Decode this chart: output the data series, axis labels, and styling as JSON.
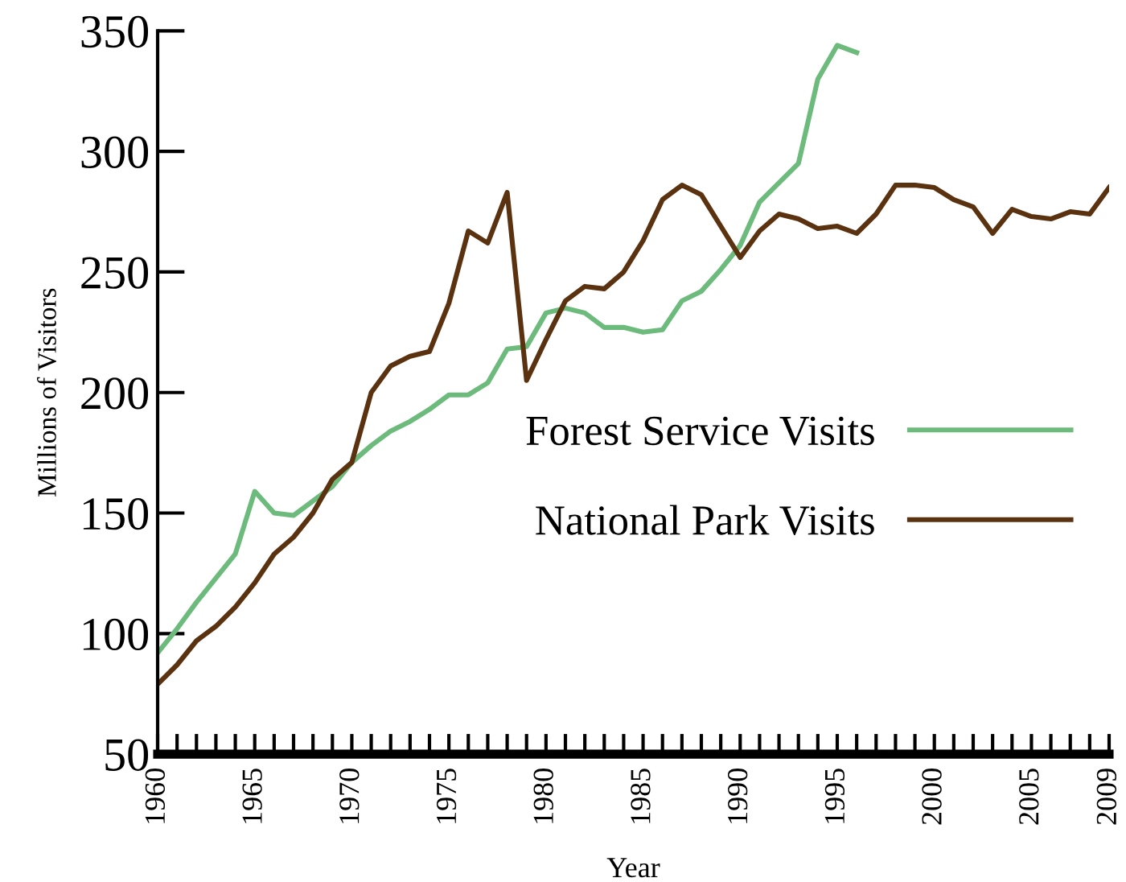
{
  "chart_data": {
    "type": "line",
    "xlabel": "Year",
    "ylabel": "Millions of Visitors",
    "x": [
      1960,
      1961,
      1962,
      1963,
      1964,
      1965,
      1966,
      1967,
      1968,
      1969,
      1970,
      1971,
      1972,
      1973,
      1974,
      1975,
      1976,
      1977,
      1978,
      1979,
      1980,
      1981,
      1982,
      1983,
      1984,
      1985,
      1986,
      1987,
      1988,
      1989,
      1990,
      1991,
      1992,
      1993,
      1994,
      1995,
      1996,
      1997,
      1998,
      1999,
      2000,
      2001,
      2002,
      2003,
      2004,
      2005,
      2006,
      2007,
      2008,
      2009
    ],
    "series": [
      {
        "name": "Forest Service Visits",
        "color": "#6dbb7c",
        "values": [
          92,
          102,
          113,
          123,
          133,
          159,
          150,
          149,
          155,
          161,
          171,
          178,
          184,
          188,
          193,
          199,
          199,
          204,
          218,
          219,
          233,
          235,
          233,
          227,
          227,
          225,
          226,
          238,
          242,
          251,
          261,
          279,
          287,
          295,
          330,
          344,
          341,
          null,
          null,
          null,
          null,
          null,
          null,
          null,
          null,
          null,
          null,
          null,
          null,
          null
        ]
      },
      {
        "name": "National Park Visits",
        "color": "#5a3210",
        "values": [
          79,
          87,
          97,
          103,
          111,
          121,
          133,
          140,
          150,
          164,
          171,
          200,
          211,
          215,
          217,
          237,
          267,
          262,
          283,
          205,
          222,
          238,
          244,
          243,
          250,
          263,
          280,
          286,
          282,
          269,
          256,
          267,
          274,
          272,
          268,
          269,
          266,
          274,
          286,
          286,
          285,
          280,
          277,
          266,
          276,
          273,
          272,
          275,
          274,
          285
        ]
      }
    ],
    "xlim": [
      1960,
      2009
    ],
    "ylim": [
      50,
      350
    ],
    "xticks": [
      1960,
      {
        "value": 1961,
        "label": null
      },
      {
        "value": 1962,
        "label": null
      },
      {
        "value": 1963,
        "label": null
      },
      {
        "value": 1964,
        "label": null
      },
      1965,
      {
        "value": 1966,
        "label": null
      },
      {
        "value": 1967,
        "label": null
      },
      {
        "value": 1968,
        "label": null
      },
      {
        "value": 1969,
        "label": null
      },
      1970,
      {
        "value": 1971,
        "label": null
      },
      {
        "value": 1972,
        "label": null
      },
      {
        "value": 1973,
        "label": null
      },
      {
        "value": 1974,
        "label": null
      },
      1975,
      {
        "value": 1976,
        "label": null
      },
      {
        "value": 1977,
        "label": null
      },
      {
        "value": 1978,
        "label": null
      },
      {
        "value": 1979,
        "label": null
      },
      1980,
      {
        "value": 1981,
        "label": null
      },
      {
        "value": 1982,
        "label": null
      },
      {
        "value": 1983,
        "label": null
      },
      {
        "value": 1984,
        "label": null
      },
      1985,
      {
        "value": 1986,
        "label": null
      },
      {
        "value": 1987,
        "label": null
      },
      {
        "value": 1988,
        "label": null
      },
      {
        "value": 1989,
        "label": null
      },
      1990,
      {
        "value": 1991,
        "label": null
      },
      {
        "value": 1992,
        "label": null
      },
      {
        "value": 1993,
        "label": null
      },
      {
        "value": 1994,
        "label": null
      },
      1995,
      {
        "value": 1996,
        "label": null
      },
      {
        "value": 1997,
        "label": null
      },
      {
        "value": 1998,
        "label": null
      },
      {
        "value": 1999,
        "label": null
      },
      2000,
      {
        "value": 2001,
        "label": null
      },
      {
        "value": 2002,
        "label": null
      },
      {
        "value": 2003,
        "label": null
      },
      {
        "value": 2004,
        "label": null
      },
      2005,
      {
        "value": 2006,
        "label": null
      },
      {
        "value": 2007,
        "label": null
      },
      {
        "value": 2008,
        "label": null
      },
      2009
    ],
    "yticks": [
      50,
      100,
      150,
      200,
      250,
      300,
      350
    ],
    "grid": false,
    "legend": "right",
    "marker": "none",
    "line_style": "solid"
  }
}
